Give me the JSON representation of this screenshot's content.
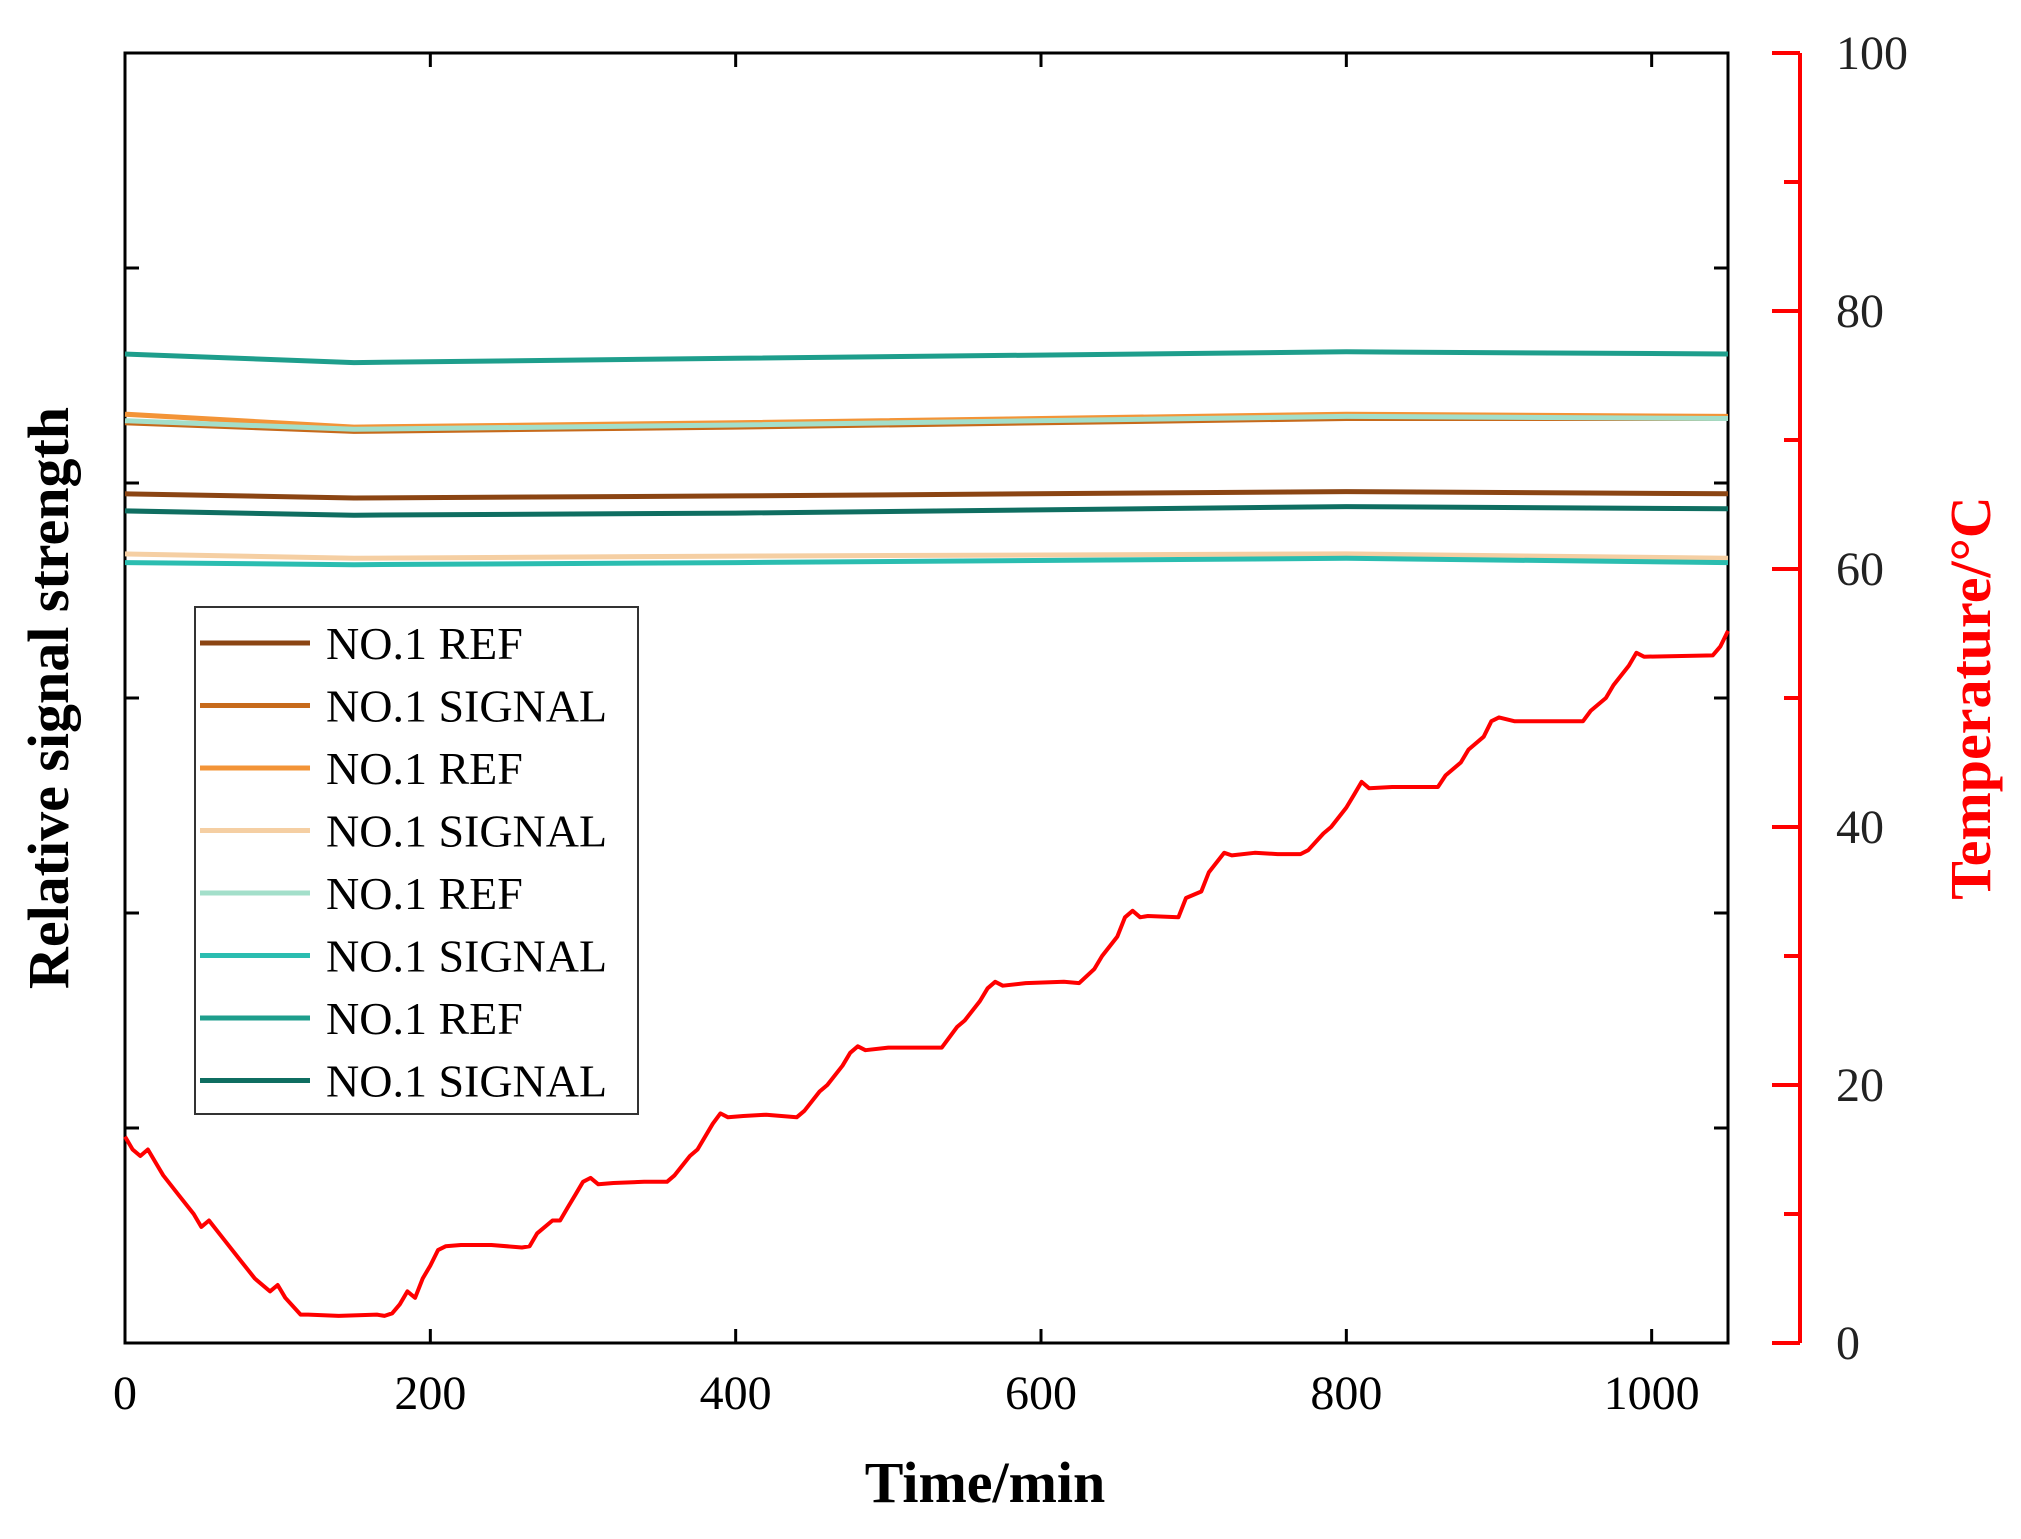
{
  "chart_data": {
    "type": "line",
    "title": "",
    "xlabel": "Time/min",
    "ylabel_left": "Relative signal strength",
    "ylabel_right": "Temperature/°C",
    "xlim": [
      0,
      1050
    ],
    "ylim_left": [
      0,
      6
    ],
    "ylim_right": [
      0,
      100
    ],
    "x_ticks": [
      0,
      200,
      400,
      600,
      800,
      1000
    ],
    "x_tick_labels": [
      "0",
      "200",
      "400",
      "600",
      "800",
      "1000"
    ],
    "y_right_ticks": [
      0,
      20,
      40,
      60,
      80,
      100
    ],
    "y_right_tick_labels": [
      "0",
      "20",
      "40",
      "60",
      "80",
      "100"
    ],
    "y_left_tick_positions": [
      1,
      2,
      3,
      4,
      5
    ],
    "left_tick_labels_shown": false,
    "grid": false,
    "legend_position": "middle-left",
    "series": [
      {
        "name": "NO.1 REF",
        "axis": "left",
        "color": "#8b4513",
        "x": [
          0,
          150,
          400,
          800,
          1050
        ],
        "y": [
          3.95,
          3.93,
          3.94,
          3.96,
          3.95
        ]
      },
      {
        "name": "NO.1 SIGNAL",
        "axis": "left",
        "color": "#c76a1b",
        "x": [
          0,
          150,
          400,
          800,
          1050
        ],
        "y": [
          4.28,
          4.24,
          4.26,
          4.3,
          4.3
        ]
      },
      {
        "name": "NO.1 REF",
        "axis": "left",
        "color": "#f39437",
        "x": [
          0,
          150,
          400,
          800,
          1050
        ],
        "y": [
          4.32,
          4.26,
          4.28,
          4.32,
          4.31
        ]
      },
      {
        "name": "NO.1 SIGNAL",
        "axis": "left",
        "color": "#f5cfa3",
        "x": [
          0,
          150,
          400,
          800,
          1050
        ],
        "y": [
          3.67,
          3.65,
          3.66,
          3.67,
          3.65
        ]
      },
      {
        "name": "NO.1 REF",
        "axis": "left",
        "color": "#a3dfca",
        "x": [
          0,
          150,
          400,
          800,
          1050
        ],
        "y": [
          4.29,
          4.25,
          4.27,
          4.31,
          4.3
        ]
      },
      {
        "name": "NO.1 SIGNAL",
        "axis": "left",
        "color": "#2bbdb0",
        "x": [
          0,
          150,
          400,
          800,
          1050
        ],
        "y": [
          3.63,
          3.62,
          3.63,
          3.65,
          3.63
        ]
      },
      {
        "name": "NO.1 REF",
        "axis": "left",
        "color": "#1e9e8c",
        "x": [
          0,
          150,
          400,
          800,
          1050
        ],
        "y": [
          4.6,
          4.56,
          4.58,
          4.61,
          4.6
        ]
      },
      {
        "name": "NO.1 SIGNAL",
        "axis": "left",
        "color": "#0f6e61",
        "x": [
          0,
          150,
          400,
          800,
          1050
        ],
        "y": [
          3.87,
          3.85,
          3.86,
          3.89,
          3.88
        ]
      },
      {
        "name": "Temperature",
        "axis": "right",
        "color": "#ff0000",
        "in_legend": false,
        "x": [
          0,
          5,
          10,
          15,
          20,
          25,
          35,
          45,
          50,
          55,
          65,
          75,
          85,
          95,
          100,
          105,
          115,
          120,
          140,
          165,
          170,
          175,
          180,
          185,
          190,
          195,
          200,
          205,
          210,
          220,
          240,
          260,
          265,
          270,
          280,
          285,
          290,
          295,
          300,
          305,
          310,
          320,
          340,
          355,
          360,
          370,
          375,
          385,
          390,
          395,
          405,
          420,
          440,
          445,
          455,
          460,
          470,
          475,
          480,
          485,
          500,
          535,
          545,
          550,
          560,
          565,
          570,
          575,
          590,
          615,
          625,
          635,
          640,
          650,
          655,
          660,
          665,
          670,
          690,
          695,
          705,
          710,
          720,
          725,
          740,
          755,
          770,
          775,
          785,
          790,
          800,
          805,
          810,
          815,
          830,
          860,
          865,
          875,
          880,
          890,
          895,
          900,
          910,
          925,
          955,
          960,
          970,
          975,
          985,
          990,
          995,
          1040,
          1045,
          1050
        ],
        "y": [
          16,
          15,
          14.5,
          15,
          14,
          13,
          11.5,
          10,
          9,
          9.5,
          8,
          6.5,
          5,
          4,
          4.5,
          3.5,
          2.2,
          2.2,
          2.1,
          2.2,
          2.1,
          2.3,
          3,
          4,
          3.5,
          5,
          6,
          7.2,
          7.5,
          7.6,
          7.6,
          7.4,
          7.5,
          8.5,
          9.5,
          9.5,
          10.5,
          11.5,
          12.5,
          12.8,
          12.3,
          12.4,
          12.5,
          12.5,
          13,
          14.5,
          15,
          17,
          17.8,
          17.5,
          17.6,
          17.7,
          17.5,
          18,
          19.5,
          20,
          21.5,
          22.5,
          23,
          22.7,
          22.9,
          22.9,
          24.5,
          25,
          26.5,
          27.5,
          28,
          27.7,
          27.9,
          28,
          27.9,
          29,
          30,
          31.5,
          33,
          33.5,
          33,
          33.1,
          33,
          34.5,
          35,
          36.5,
          38,
          37.8,
          38,
          37.9,
          37.9,
          38.2,
          39.5,
          40,
          41.5,
          42.5,
          43.5,
          43,
          43.1,
          43.1,
          44,
          45,
          46,
          47,
          48.2,
          48.5,
          48.2,
          48.2,
          48.2,
          49,
          50,
          51,
          52.5,
          53.5,
          53.2,
          53.3,
          54,
          55.2
        ]
      }
    ]
  }
}
